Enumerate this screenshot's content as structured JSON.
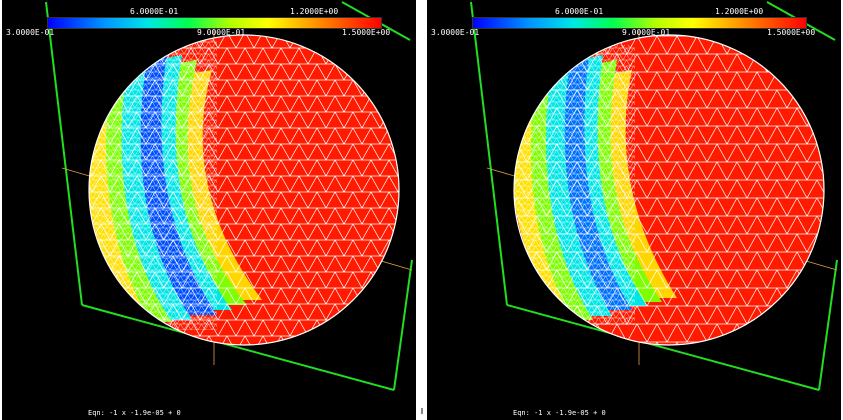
{
  "colorbar": {
    "ticks_top": [
      "6.0000E-01",
      "1.2000E+00"
    ],
    "ticks_bottom": [
      "3.0000E-01",
      "9.0000E-01",
      "1.5000E+00"
    ],
    "gradient": [
      "#0000ff",
      "#0096ff",
      "#00e6e6",
      "#00ff50",
      "#b4ff00",
      "#ffff00",
      "#ff9600",
      "#ff0000"
    ]
  },
  "panels": [
    {
      "eqn": "Eqn:  -1 x -1.9e-05 + 0"
    },
    {
      "eqn": "Eqn:  -1 x -1.9e-05 + 0"
    }
  ],
  "colors": {
    "background": "#000000",
    "frame": "#22dd22",
    "mesh": "#ffffff",
    "axis": "#e0a040"
  }
}
